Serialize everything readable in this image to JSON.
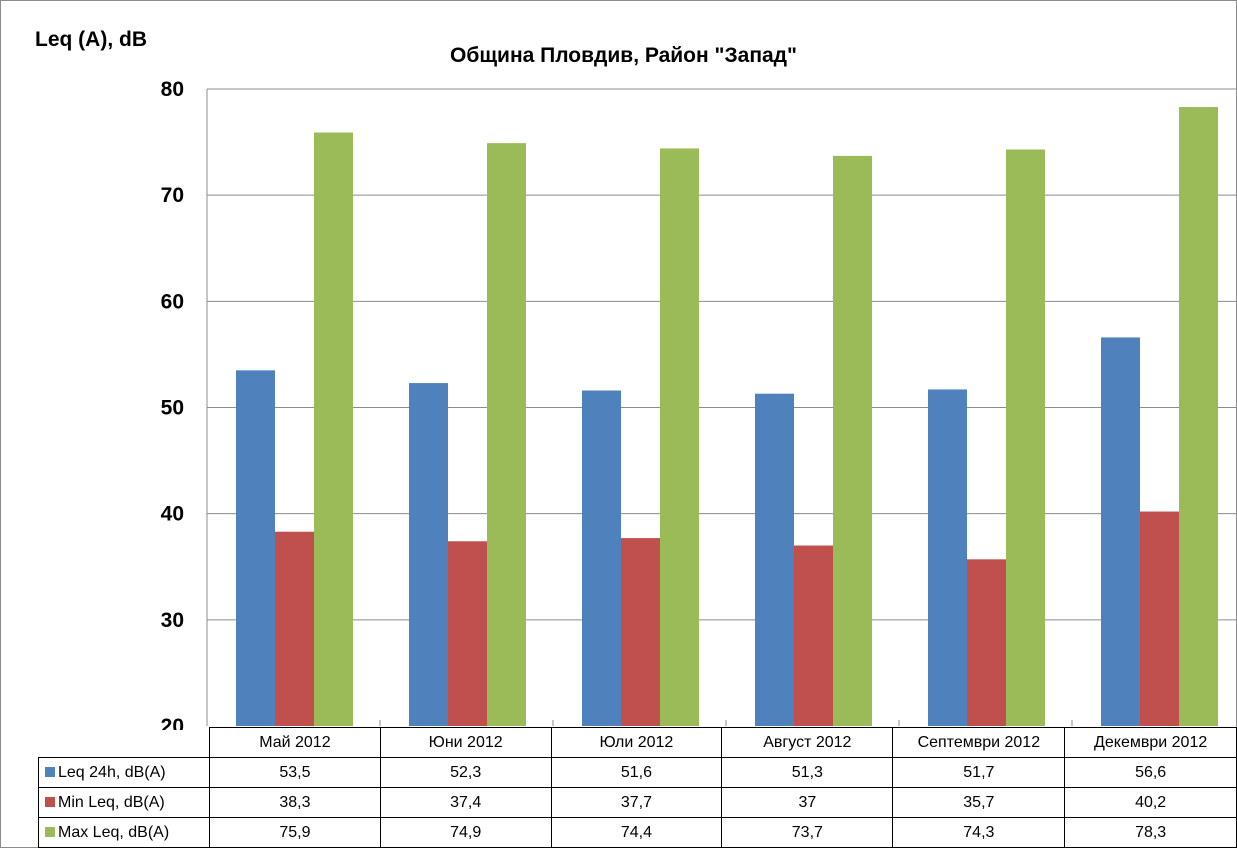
{
  "chart_data": {
    "type": "bar",
    "title": "Община Пловдив, Район \"Запад\"",
    "ylabel": "Leq (A), dB",
    "xlabel": "",
    "ylim": [
      20,
      80
    ],
    "yticks": [
      "20",
      "30",
      "40",
      "50",
      "60",
      "70",
      "80"
    ],
    "grid": true,
    "legend": "data-table",
    "categories": [
      "Май 2012",
      "Юни 2012",
      "Юли 2012",
      "Август 2012",
      "Септември 2012",
      "Декември 2012"
    ],
    "series": [
      {
        "name": "Leq 24h, dB(A)",
        "color": "#4f81bd",
        "values": [
          53.5,
          52.3,
          51.6,
          51.3,
          51.7,
          56.6
        ],
        "labels": [
          "53,5",
          "52,3",
          "51,6",
          "51,3",
          "51,7",
          "56,6"
        ]
      },
      {
        "name": "Min Leq, dB(A)",
        "color": "#c0504d",
        "values": [
          38.3,
          37.4,
          37.7,
          37,
          35.7,
          40.2
        ],
        "labels": [
          "38,3",
          "37,4",
          "37,7",
          "37",
          "35,7",
          "40,2"
        ]
      },
      {
        "name": "Max Leq, dB(A)",
        "color": "#9bbb59",
        "values": [
          75.9,
          74.9,
          74.4,
          73.7,
          74.3,
          78.3
        ],
        "labels": [
          "75,9",
          "74,9",
          "74,4",
          "73,7",
          "74,3",
          "78,3"
        ]
      }
    ]
  }
}
